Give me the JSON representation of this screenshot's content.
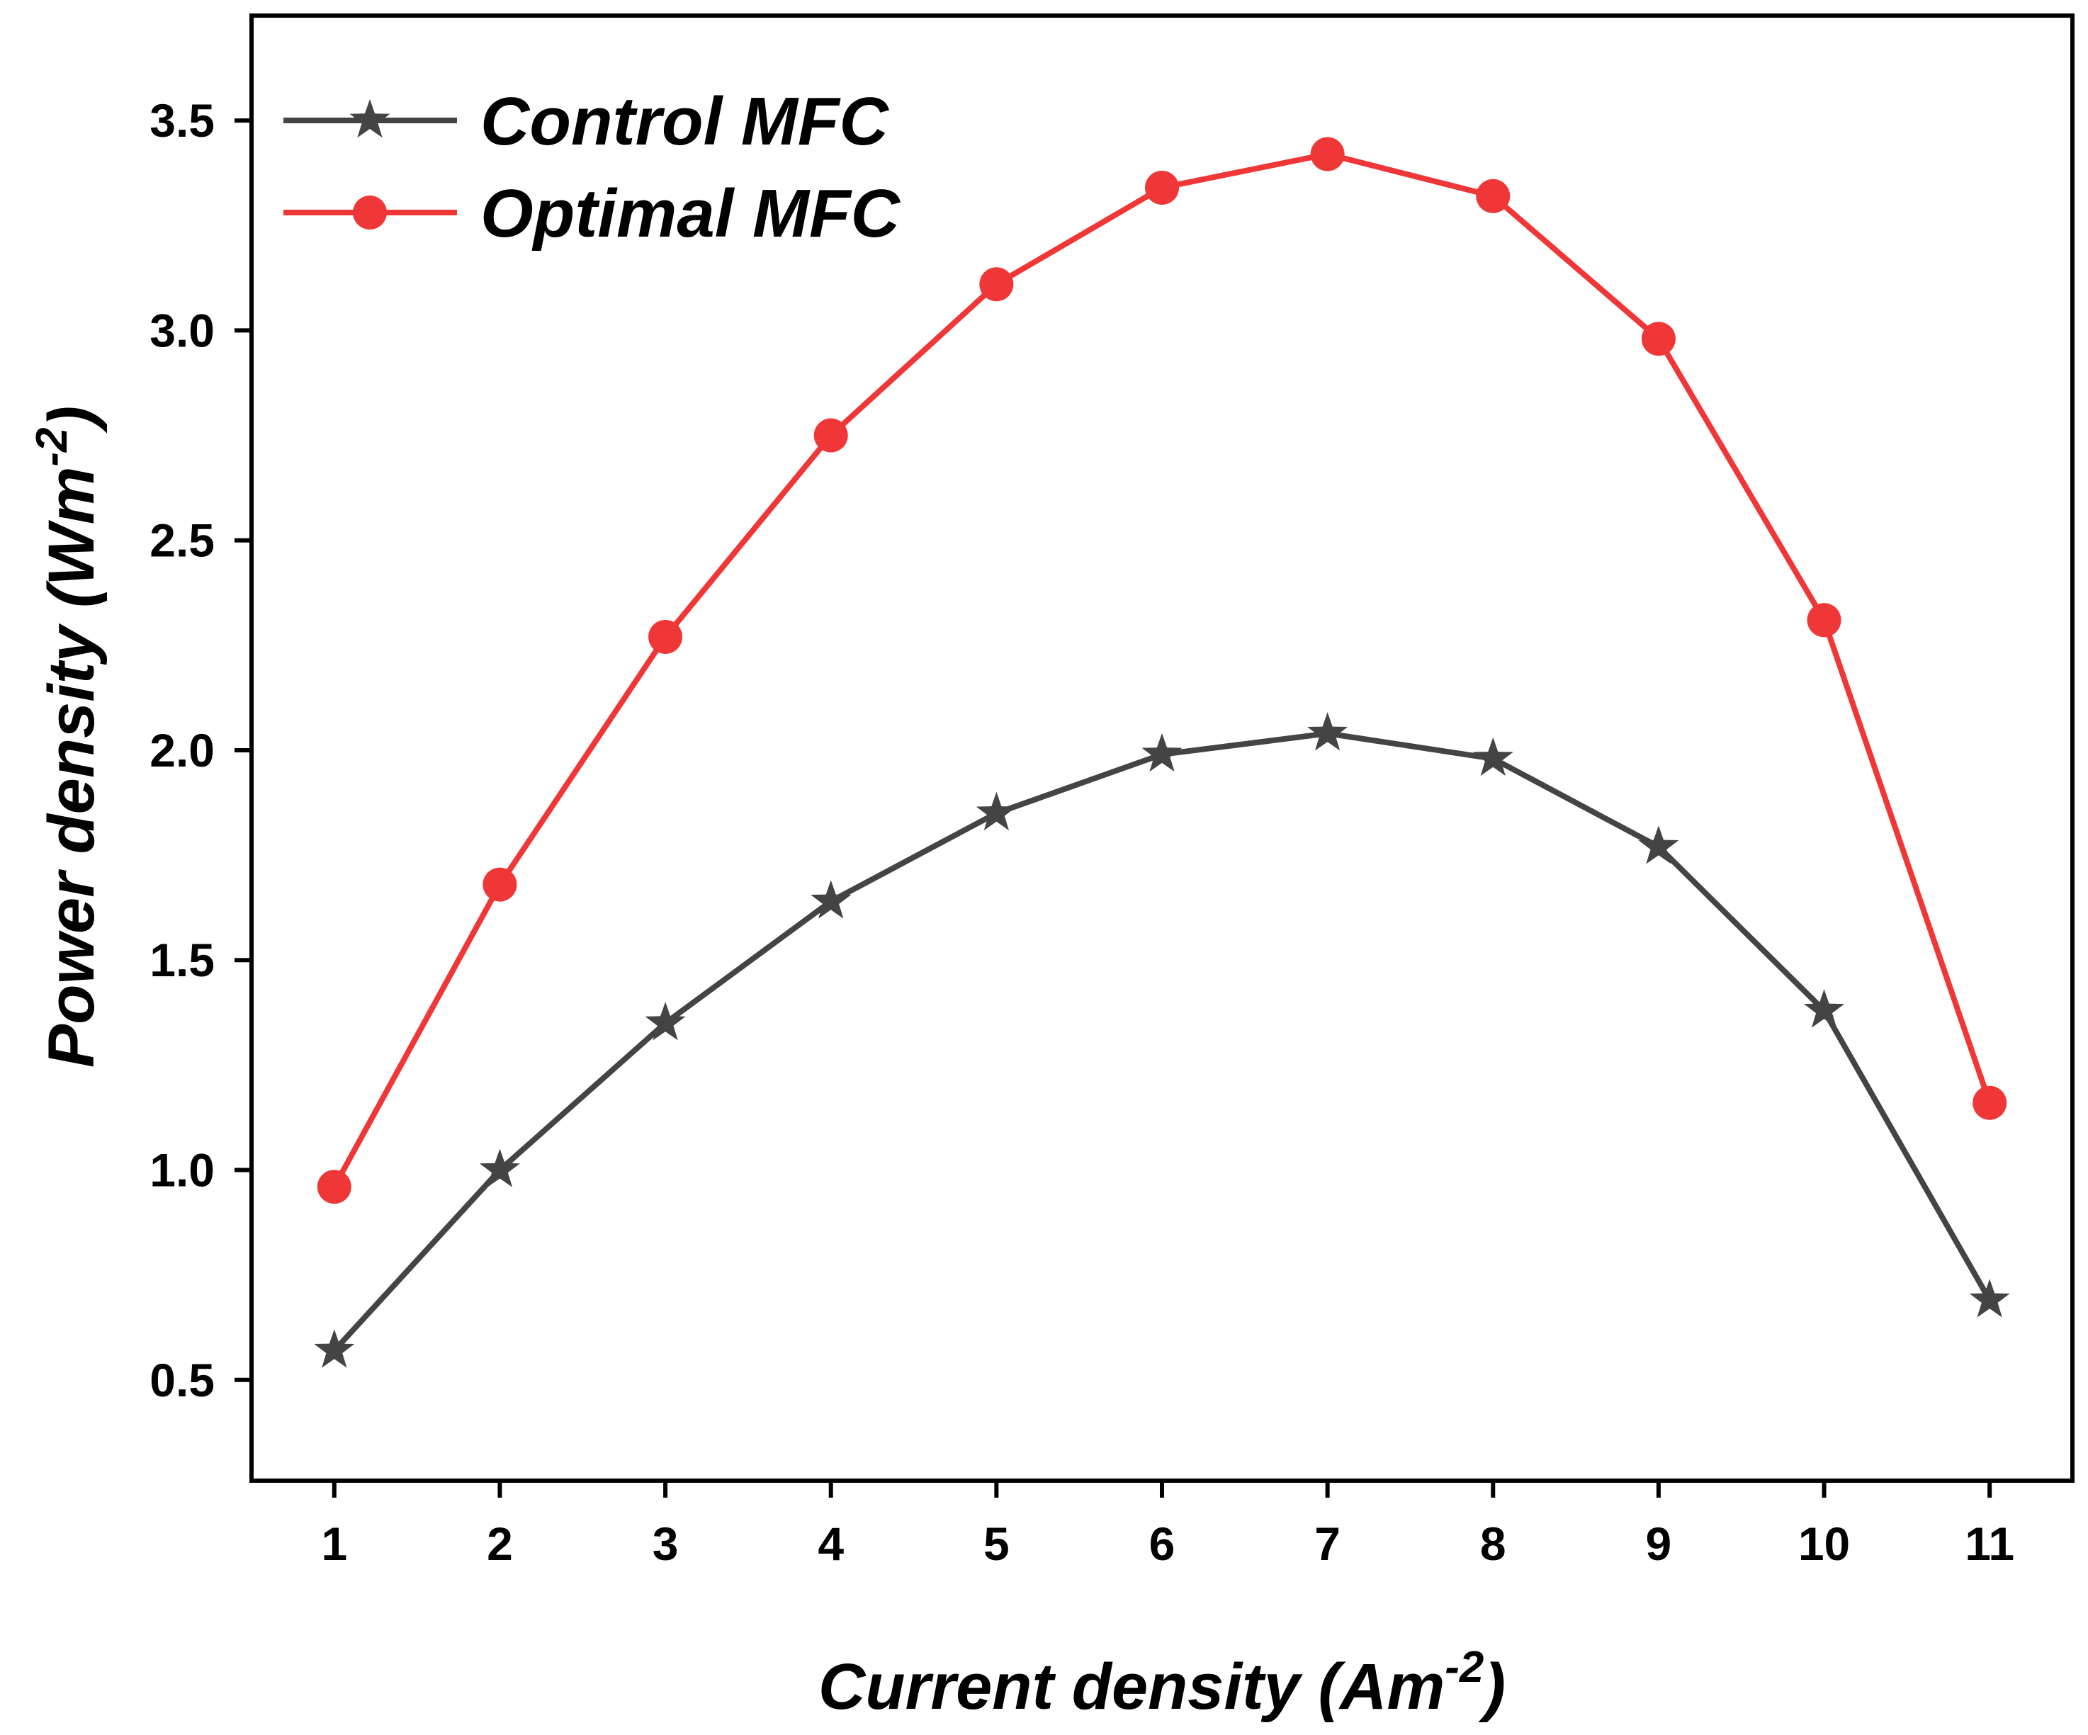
{
  "chart_data": {
    "type": "line",
    "title": "",
    "xlabel": {
      "main": "Current density (Am",
      "sup": "-2",
      "end": ")"
    },
    "ylabel": {
      "main": "Power density (Wm",
      "sup": "-2",
      "end": ")"
    },
    "x": [
      1,
      2,
      3,
      4,
      5,
      6,
      7,
      8,
      9,
      10,
      11
    ],
    "xticks": [
      "1",
      "2",
      "3",
      "4",
      "5",
      "6",
      "7",
      "8",
      "9",
      "10",
      "11"
    ],
    "yticks": [
      "0.5",
      "1.0",
      "1.5",
      "2.0",
      "2.5",
      "3.0",
      "3.5"
    ],
    "xlim": [
      0.5,
      11.5
    ],
    "ylim": [
      0.26,
      3.75
    ],
    "grid": false,
    "legend_position": "top-left",
    "series": [
      {
        "name": "Control MFC",
        "marker": "star",
        "color": "#444444",
        "values": [
          0.57,
          1.0,
          1.35,
          1.64,
          1.85,
          1.99,
          2.04,
          1.98,
          1.77,
          1.38,
          0.69
        ]
      },
      {
        "name": "Optimal MFC",
        "marker": "circle",
        "color": "#f03737",
        "values": [
          0.96,
          1.68,
          2.27,
          2.75,
          3.11,
          3.34,
          3.42,
          3.32,
          2.98,
          2.31,
          1.16
        ]
      }
    ]
  }
}
